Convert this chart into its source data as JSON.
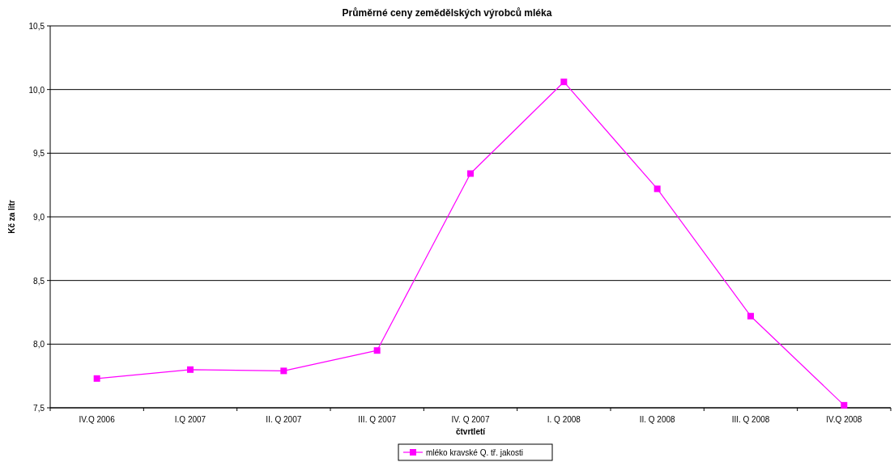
{
  "chart_data": {
    "type": "line",
    "title": "Průměrné ceny zemědělských výrobců mléka",
    "xlabel": "čtvrtletí",
    "ylabel": "Kč za litr",
    "categories": [
      "IV.Q 2006",
      "I.Q 2007",
      "II. Q 2007",
      "III. Q 2007",
      "IV. Q 2007",
      "I. Q 2008",
      "II. Q 2008",
      "III. Q 2008",
      "IV.Q 2008"
    ],
    "series": [
      {
        "name": "mléko kravské Q. tř. jakosti",
        "color": "#ff00ff",
        "values": [
          7.73,
          7.8,
          7.79,
          7.95,
          9.34,
          10.06,
          9.22,
          8.22,
          7.52
        ]
      }
    ],
    "ylim": [
      7.5,
      10.5
    ],
    "yticks": [
      {
        "value": 7.5,
        "label": "7,5"
      },
      {
        "value": 8,
        "label": "8,0"
      },
      {
        "value": 8.5,
        "label": "8,5"
      },
      {
        "value": 9,
        "label": "9,0"
      },
      {
        "value": 9.5,
        "label": "9,5"
      },
      {
        "value": 10,
        "label": "10,0"
      },
      {
        "value": 10.5,
        "label": "10,5"
      }
    ],
    "grid": "y",
    "legend": "bottom",
    "marker": "square",
    "line_style": "solid"
  }
}
